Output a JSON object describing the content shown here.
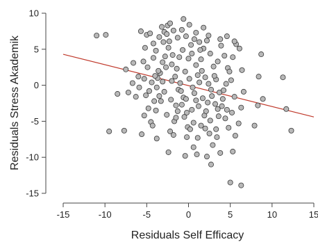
{
  "chart_data": {
    "type": "scatter",
    "xlabel": "Residuals Self Efficacy",
    "ylabel": "Residuals Stress Akademik",
    "xlim": [
      -15,
      15
    ],
    "ylim": [
      -15,
      10
    ],
    "xticks": [
      -15,
      -10,
      -5,
      0,
      5,
      10,
      15
    ],
    "yticks": [
      -15,
      -10,
      -5,
      0,
      5,
      10
    ],
    "x_tick_labels": [
      "-15",
      "-10",
      "-5",
      "0",
      "5",
      "10",
      "15"
    ],
    "y_tick_labels": [
      "-15",
      "-10",
      "-5",
      "0",
      "5",
      "10"
    ],
    "grid": false,
    "colors": {
      "point_fill": "#b8b8b8",
      "point_stroke": "#3a3a3a",
      "fit_line": "#c0392b",
      "axis": "#444444"
    },
    "fit_line": {
      "x": [
        -15,
        15
      ],
      "y": [
        4.3,
        -4.4
      ]
    },
    "series": [
      {
        "points": [
          [
            -11,
            6.9
          ],
          [
            -9.9,
            7.0
          ],
          [
            -9.5,
            -6.4
          ],
          [
            -7.7,
            -6.3
          ],
          [
            -7.5,
            2.2
          ],
          [
            -8.5,
            -1.2
          ],
          [
            -7.2,
            -1.0
          ],
          [
            -6.0,
            1.2
          ],
          [
            -5.9,
            -0.3
          ],
          [
            -5.6,
            -6.8
          ],
          [
            -5.7,
            7.5
          ],
          [
            -5.0,
            7.0
          ],
          [
            -4.6,
            7.2
          ],
          [
            -4.2,
            5.8
          ],
          [
            -3.9,
            4.8
          ],
          [
            -3.5,
            6.7
          ],
          [
            -3.2,
            8.1
          ],
          [
            -2.9,
            7.4
          ],
          [
            -2.5,
            8.3
          ],
          [
            -2.2,
            8.6
          ],
          [
            -1.8,
            7.6
          ],
          [
            -1.3,
            6.6
          ],
          [
            -0.8,
            7.7
          ],
          [
            -0.3,
            6.8
          ],
          [
            -5.1,
            -1.4
          ],
          [
            -4.8,
            -3.2
          ],
          [
            -4.5,
            -5.1
          ],
          [
            -4.1,
            -2.2
          ],
          [
            -3.8,
            -0.3
          ],
          [
            -3.4,
            1.7
          ],
          [
            -3.1,
            3.2
          ],
          [
            -2.8,
            4.0
          ],
          [
            -2.4,
            5.2
          ],
          [
            -2.0,
            2.9
          ],
          [
            -1.6,
            1.2
          ],
          [
            -1.2,
            -0.6
          ],
          [
            -0.8,
            -2.7
          ],
          [
            -0.5,
            -4.4
          ],
          [
            -0.1,
            -5.8
          ],
          [
            0.4,
            -3.4
          ],
          [
            0.7,
            -1.1
          ],
          [
            1.1,
            1.4
          ],
          [
            1.5,
            3.6
          ],
          [
            1.8,
            5.1
          ],
          [
            2.2,
            6.2
          ],
          [
            2.6,
            4.4
          ],
          [
            3.0,
            2.6
          ],
          [
            3.3,
            0.8
          ],
          [
            3.7,
            -1.0
          ],
          [
            4.0,
            -2.9
          ],
          [
            4.4,
            -4.6
          ],
          [
            4.8,
            -5.9
          ],
          [
            5.2,
            -3.8
          ],
          [
            5.5,
            -1.6
          ],
          [
            5.1,
            0.7
          ],
          [
            4.7,
            2.4
          ],
          [
            4.3,
            4.1
          ],
          [
            3.9,
            5.5
          ],
          [
            3.5,
            3.3
          ],
          [
            3.1,
            1.3
          ],
          [
            2.7,
            -0.6
          ],
          [
            2.3,
            -2.4
          ],
          [
            1.9,
            -4.2
          ],
          [
            1.5,
            -5.6
          ],
          [
            1.1,
            -7.3
          ],
          [
            0.6,
            -8.6
          ],
          [
            0.2,
            -6.1
          ],
          [
            -0.2,
            -3.8
          ],
          [
            -0.6,
            -1.7
          ],
          [
            -1.0,
            0.3
          ],
          [
            -1.4,
            2.3
          ],
          [
            -1.9,
            4.2
          ],
          [
            -2.3,
            6.1
          ],
          [
            -2.7,
            2.5
          ],
          [
            -3.1,
            0.5
          ],
          [
            -3.5,
            -1.5
          ],
          [
            -3.9,
            -3.5
          ],
          [
            -4.3,
            -5.6
          ],
          [
            -4.7,
            -0.8
          ],
          [
            -5.3,
            0.9
          ],
          [
            -4.9,
            2.5
          ],
          [
            -4.2,
            3.8
          ],
          [
            -3.7,
            1.0
          ],
          [
            -3.3,
            -2.2
          ],
          [
            -2.6,
            -4.1
          ],
          [
            -2.2,
            -6.4
          ],
          [
            -1.7,
            -5.0
          ],
          [
            -1.5,
            -2.8
          ],
          [
            -0.9,
            -0.8
          ],
          [
            -0.4,
            1.9
          ],
          [
            0.0,
            3.7
          ],
          [
            0.3,
            5.6
          ],
          [
            0.7,
            6.4
          ],
          [
            0.9,
            2.8
          ],
          [
            1.3,
            0.4
          ],
          [
            1.7,
            -1.8
          ],
          [
            2.1,
            -3.6
          ],
          [
            2.5,
            -6.7
          ],
          [
            2.9,
            -8.3
          ],
          [
            3.3,
            -6.1
          ],
          [
            3.6,
            -4.3
          ],
          [
            4.1,
            -1.9
          ],
          [
            4.5,
            0.2
          ],
          [
            4.9,
            1.9
          ],
          [
            5.3,
            3.9
          ],
          [
            5.7,
            5.7
          ],
          [
            6.1,
            5.1
          ],
          [
            6.4,
            2.1
          ],
          [
            6.6,
            -0.9
          ],
          [
            6.3,
            -3.1
          ],
          [
            6.0,
            -5.3
          ],
          [
            5.6,
            -7.0
          ],
          [
            5.3,
            -9.2
          ],
          [
            3.8,
            -9.4
          ],
          [
            2.7,
            -11.0
          ],
          [
            2.2,
            -9.9
          ],
          [
            1.0,
            -9.6
          ],
          [
            -0.4,
            -9.8
          ],
          [
            -2.4,
            -9.3
          ],
          [
            -3.8,
            -7.4
          ],
          [
            5.0,
            -13.5
          ],
          [
            6.3,
            -13.9
          ],
          [
            7.9,
            -5.6
          ],
          [
            8.3,
            -2.8
          ],
          [
            8.9,
            -1.9
          ],
          [
            8.4,
            1.2
          ],
          [
            8.7,
            4.3
          ],
          [
            11.3,
            1.1
          ],
          [
            11.7,
            -3.3
          ],
          [
            12.3,
            -6.3
          ],
          [
            -5.4,
            3.3
          ],
          [
            -5.2,
            5.2
          ],
          [
            -4.4,
            0.4
          ],
          [
            -2.9,
            -0.9
          ],
          [
            -2.0,
            0.6
          ],
          [
            -1.1,
            3.9
          ],
          [
            -0.7,
            4.9
          ],
          [
            0.1,
            0.9
          ],
          [
            0.5,
            -0.3
          ],
          [
            0.9,
            -2.1
          ],
          [
            1.2,
            -2.9
          ],
          [
            1.6,
            2.0
          ],
          [
            2.0,
            1.1
          ],
          [
            2.4,
            0.2
          ],
          [
            2.8,
            -1.5
          ],
          [
            3.2,
            -2.6
          ],
          [
            3.5,
            -3.3
          ],
          [
            4.2,
            -0.7
          ],
          [
            -0.3,
            -1.9
          ],
          [
            -1.3,
            -3.6
          ],
          [
            -2.1,
            -2.0
          ],
          [
            -3.6,
            2.0
          ],
          [
            -4.0,
            1.3
          ],
          [
            0.4,
            4.4
          ],
          [
            1.4,
            4.9
          ],
          [
            2.6,
            -4.9
          ],
          [
            3.4,
            -7.2
          ],
          [
            4.6,
            -3.4
          ],
          [
            -1.8,
            -6.9
          ],
          [
            -0.2,
            -7.2
          ],
          [
            1.8,
            8.0
          ],
          [
            0.9,
            7.3
          ],
          [
            -0.6,
            9.2
          ],
          [
            -3.0,
            6.0
          ],
          [
            2.4,
            6.9
          ],
          [
            3.8,
            6.4
          ],
          [
            4.6,
            6.8
          ],
          [
            5.5,
            6.1
          ],
          [
            -5.3,
            -4.2
          ],
          [
            -2.6,
            7.1
          ],
          [
            0.1,
            8.4
          ],
          [
            1.3,
            6.0
          ],
          [
            -1.5,
            -4.5
          ],
          [
            0.6,
            -5.2
          ],
          [
            2.0,
            -6.0
          ],
          [
            -6.3,
            -1.6
          ],
          [
            -6.7,
            0.3
          ],
          [
            -6.6,
            3.1
          ]
        ]
      }
    ]
  }
}
